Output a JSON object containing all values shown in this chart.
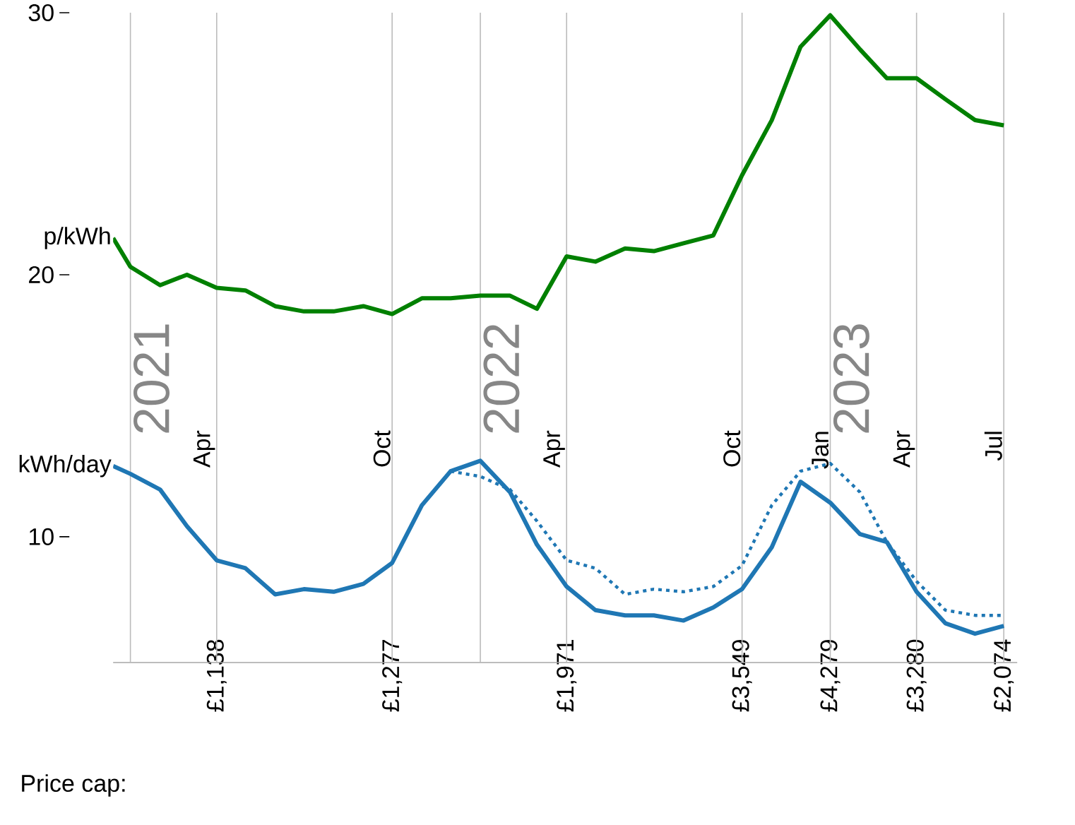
{
  "chart_data": {
    "type": "line",
    "x": [
      "2020-12-14",
      "2021-01-01",
      "2021-02-01",
      "2021-03-01",
      "2021-04-01",
      "2021-05-01",
      "2021-06-01",
      "2021-07-01",
      "2021-08-01",
      "2021-09-01",
      "2021-10-01",
      "2021-11-01",
      "2021-12-01",
      "2022-01-01",
      "2022-02-01",
      "2022-03-01",
      "2022-04-01",
      "2022-05-01",
      "2022-06-01",
      "2022-07-01",
      "2022-08-01",
      "2022-09-01",
      "2022-10-01",
      "2022-11-01",
      "2022-12-01",
      "2023-01-01",
      "2023-02-01",
      "2023-03-01",
      "2023-04-01",
      "2023-05-01",
      "2023-06-01",
      "2023-07-01"
    ],
    "series": [
      {
        "name": "p/kWh",
        "color": "#008000",
        "line_style": "solid",
        "values": [
          21.4,
          20.3,
          19.6,
          20.0,
          19.5,
          19.4,
          18.8,
          18.6,
          18.6,
          18.8,
          18.5,
          19.1,
          19.1,
          19.2,
          19.2,
          18.7,
          20.7,
          20.5,
          21.0,
          20.9,
          21.2,
          21.5,
          23.8,
          25.9,
          28.7,
          29.9,
          28.6,
          27.5,
          27.5,
          26.7,
          25.9,
          25.7
        ]
      },
      {
        "name": "kWh/day",
        "color": "#1f77b4",
        "line_style": "solid",
        "values": [
          12.7,
          12.4,
          11.8,
          10.4,
          9.1,
          8.8,
          7.8,
          8.0,
          7.9,
          8.2,
          9.0,
          11.2,
          12.5,
          12.9,
          11.7,
          9.7,
          8.1,
          7.2,
          7.0,
          7.0,
          6.8,
          7.3,
          8.0,
          9.6,
          12.1,
          11.3,
          10.1,
          9.8,
          7.9,
          6.7,
          6.3,
          6.6
        ]
      },
      {
        "color": "#1f77b4",
        "line_style": "dotted",
        "x": [
          "2021-12-01",
          "2022-01-01",
          "2022-02-01",
          "2022-03-01",
          "2022-04-01",
          "2022-05-01",
          "2022-06-01",
          "2022-07-01",
          "2022-08-01",
          "2022-09-01",
          "2022-10-01",
          "2022-11-01",
          "2022-12-01",
          "2023-01-01",
          "2023-02-01",
          "2023-03-01",
          "2023-04-01",
          "2023-05-01",
          "2023-06-01",
          "2023-07-01"
        ],
        "values": [
          12.5,
          12.3,
          11.8,
          10.6,
          9.1,
          8.8,
          7.8,
          8.0,
          7.9,
          8.1,
          8.9,
          11.2,
          12.5,
          12.8,
          11.7,
          9.8,
          8.3,
          7.2,
          7.0,
          7.0
        ]
      }
    ],
    "xlim": [
      "2020-12-14",
      "2023-07-15"
    ],
    "ylim": [
      5.2,
      30
    ],
    "yticks": [
      10,
      20,
      30
    ],
    "xticks": [
      {
        "value": "2021-04-01",
        "label": "£1,138"
      },
      {
        "value": "2021-10-01",
        "label": "£1,277"
      },
      {
        "value": "2022-04-01",
        "label": "£1,971"
      },
      {
        "value": "2022-10-01",
        "label": "£3,549"
      },
      {
        "value": "2023-01-01",
        "label": "£4,279"
      },
      {
        "value": "2023-04-01",
        "label": "£3,280"
      },
      {
        "value": "2023-07-01",
        "label": "£2,074"
      }
    ],
    "ref_lines": [
      {
        "axis": "x",
        "value": "2021-01-01",
        "color": "#bbbbbb"
      },
      {
        "axis": "x",
        "value": "2021-04-01",
        "label": "Apr",
        "color": "#bbbbbb"
      },
      {
        "axis": "x",
        "value": "2021-10-01",
        "label": "Oct",
        "color": "#bbbbbb"
      },
      {
        "axis": "x",
        "value": "2022-01-01",
        "color": "#bbbbbb"
      },
      {
        "axis": "x",
        "value": "2022-04-01",
        "label": "Apr",
        "color": "#bbbbbb"
      },
      {
        "axis": "x",
        "value": "2022-10-01",
        "label": "Oct",
        "color": "#bbbbbb"
      },
      {
        "axis": "x",
        "value": "2023-01-01",
        "label": "Jan",
        "color": "#bbbbbb"
      },
      {
        "axis": "x",
        "value": "2023-04-01",
        "label": "Apr",
        "color": "#bbbbbb"
      },
      {
        "axis": "x",
        "value": "2023-07-01",
        "label": "Jul",
        "color": "#bbbbbb"
      }
    ],
    "annotations": [
      "Price cap:",
      "2021",
      "2022",
      "2023"
    ]
  }
}
